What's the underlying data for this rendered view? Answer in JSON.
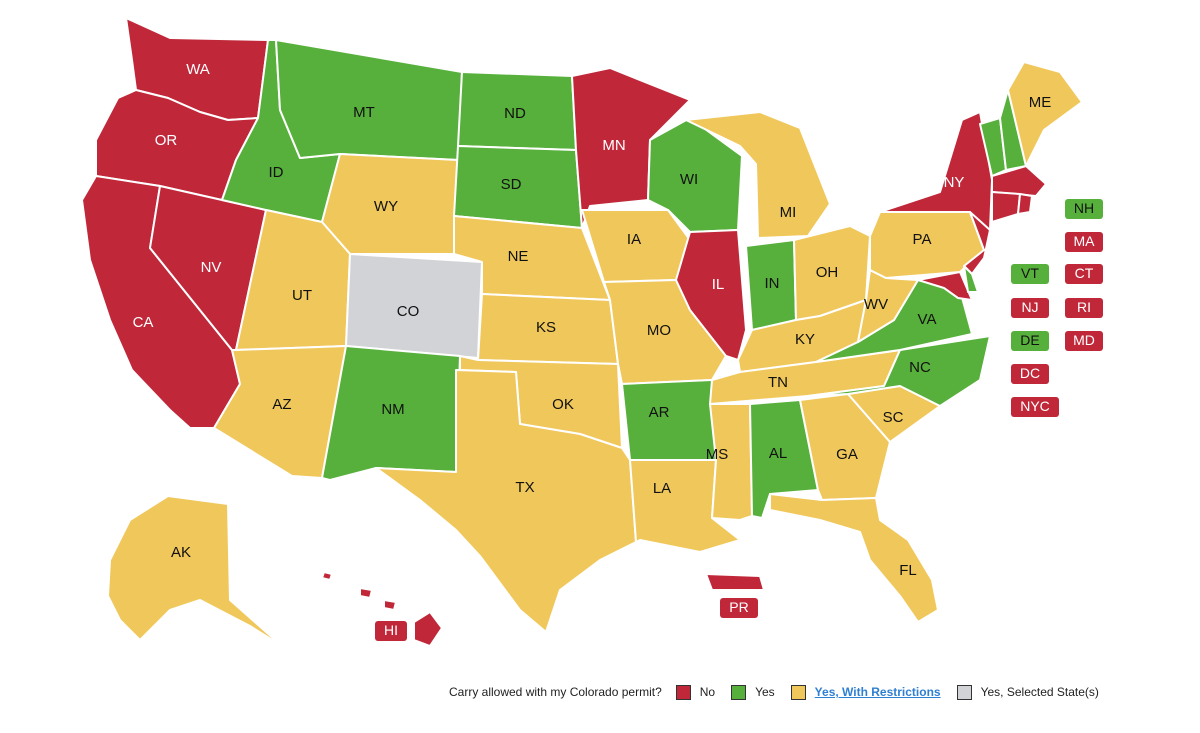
{
  "colors": {
    "no": "#c0283a",
    "yes": "#58b03c",
    "restricted": "#f0c75a",
    "selected": "#d2d3d7"
  },
  "legend": {
    "question": "Carry allowed with my Colorado permit?",
    "items": [
      {
        "key": "no",
        "label": "No"
      },
      {
        "key": "yes",
        "label": "Yes"
      },
      {
        "key": "restricted",
        "label": "Yes, With Restrictions"
      },
      {
        "key": "selected",
        "label": "Yes, Selected State(s)"
      }
    ]
  },
  "states": {
    "WA": {
      "label": "WA",
      "status": "no"
    },
    "OR": {
      "label": "OR",
      "status": "no"
    },
    "CA": {
      "label": "CA",
      "status": "no"
    },
    "NV": {
      "label": "NV",
      "status": "no"
    },
    "ID": {
      "label": "ID",
      "status": "yes"
    },
    "MT": {
      "label": "MT",
      "status": "yes"
    },
    "WY": {
      "label": "WY",
      "status": "restricted"
    },
    "UT": {
      "label": "UT",
      "status": "restricted"
    },
    "AZ": {
      "label": "AZ",
      "status": "restricted"
    },
    "CO": {
      "label": "CO",
      "status": "selected"
    },
    "NM": {
      "label": "NM",
      "status": "yes"
    },
    "ND": {
      "label": "ND",
      "status": "yes"
    },
    "SD": {
      "label": "SD",
      "status": "yes"
    },
    "NE": {
      "label": "NE",
      "status": "restricted"
    },
    "KS": {
      "label": "KS",
      "status": "restricted"
    },
    "OK": {
      "label": "OK",
      "status": "restricted"
    },
    "TX": {
      "label": "TX",
      "status": "restricted"
    },
    "MN": {
      "label": "MN",
      "status": "no"
    },
    "IA": {
      "label": "IA",
      "status": "restricted"
    },
    "MO": {
      "label": "MO",
      "status": "restricted"
    },
    "AR": {
      "label": "AR",
      "status": "yes"
    },
    "LA": {
      "label": "LA",
      "status": "restricted"
    },
    "WI": {
      "label": "WI",
      "status": "yes"
    },
    "IL": {
      "label": "IL",
      "status": "no"
    },
    "MI": {
      "label": "MI",
      "status": "restricted"
    },
    "IN": {
      "label": "IN",
      "status": "yes"
    },
    "OH": {
      "label": "OH",
      "status": "restricted"
    },
    "KY": {
      "label": "KY",
      "status": "restricted"
    },
    "TN": {
      "label": "TN",
      "status": "restricted"
    },
    "MS": {
      "label": "MS",
      "status": "restricted"
    },
    "AL": {
      "label": "AL",
      "status": "yes"
    },
    "GA": {
      "label": "GA",
      "status": "restricted"
    },
    "FL": {
      "label": "FL",
      "status": "restricted"
    },
    "SC": {
      "label": "SC",
      "status": "restricted"
    },
    "NC": {
      "label": "NC",
      "status": "yes"
    },
    "VA": {
      "label": "VA",
      "status": "yes"
    },
    "WV": {
      "label": "WV",
      "status": "restricted"
    },
    "PA": {
      "label": "PA",
      "status": "restricted"
    },
    "NY": {
      "label": "NY",
      "status": "no"
    },
    "ME": {
      "label": "ME",
      "status": "restricted"
    },
    "AK": {
      "label": "AK",
      "status": "restricted"
    },
    "HI": {
      "label": "HI",
      "status": "no"
    },
    "PR": {
      "label": "PR",
      "status": "no"
    },
    "NH": {
      "label": "NH",
      "status": "yes"
    },
    "MA": {
      "label": "MA",
      "status": "no"
    },
    "VT": {
      "label": "VT",
      "status": "yes"
    },
    "CT": {
      "label": "CT",
      "status": "no"
    },
    "NJ": {
      "label": "NJ",
      "status": "no"
    },
    "RI": {
      "label": "RI",
      "status": "no"
    },
    "DE": {
      "label": "DE",
      "status": "yes"
    },
    "MD": {
      "label": "MD",
      "status": "no"
    },
    "DC": {
      "label": "DC",
      "status": "no"
    },
    "NYC": {
      "label": "NYC",
      "status": "no"
    }
  }
}
